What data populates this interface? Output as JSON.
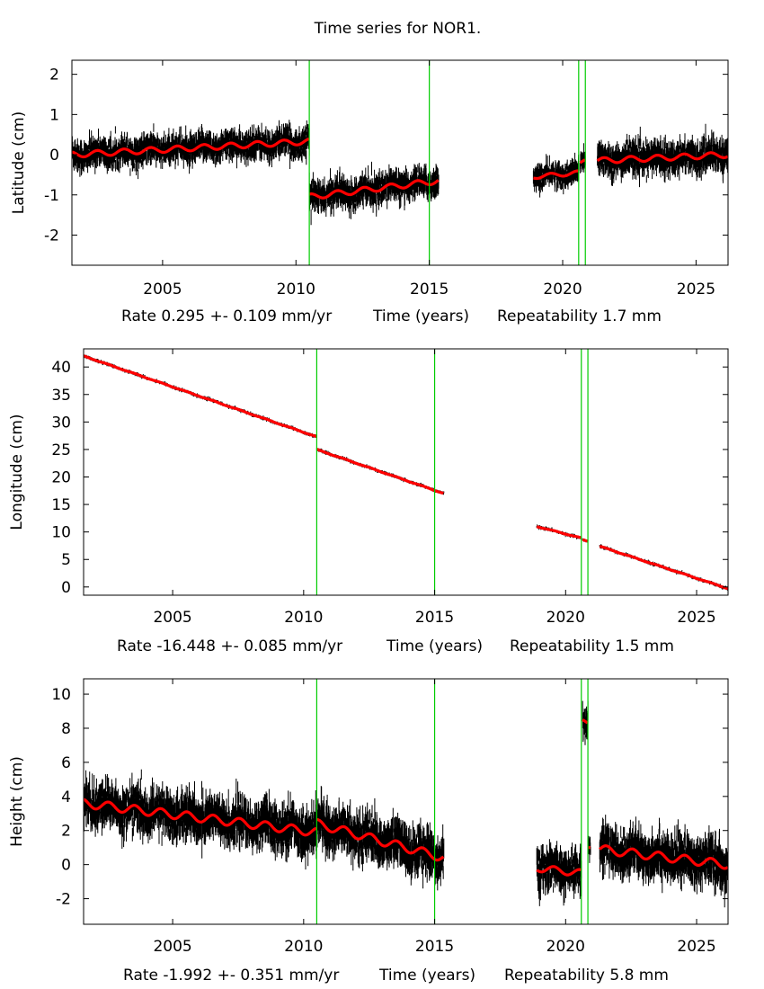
{
  "title": "Time series for NOR1.",
  "colors": {
    "data": "#000000",
    "model": "#ff0000",
    "event": "#00cc00"
  },
  "chart_data": [
    {
      "type": "scatter",
      "ylabel": "Latitude (cm)",
      "xlabel": "Time (years)",
      "rate_text": "Rate 0.295 +- 0.109 mm/yr",
      "repeat_text": "Repeatability 1.7 mm",
      "xlim": [
        2001.6,
        2026.2
      ],
      "ylim": [
        -2.75,
        2.35
      ],
      "xticks": [
        {
          "v": 2005,
          "label": "2005"
        },
        {
          "v": 2010,
          "label": "2010"
        },
        {
          "v": 2015,
          "label": "2015"
        },
        {
          "v": 2020,
          "label": "2020"
        },
        {
          "v": 2025,
          "label": "2025"
        }
      ],
      "yticks": [
        {
          "v": 2,
          "label": "2"
        },
        {
          "v": 1,
          "label": "1"
        },
        {
          "v": 0,
          "label": "0"
        },
        {
          "v": -1,
          "label": "-1"
        },
        {
          "v": -2,
          "label": "-2"
        }
      ],
      "event_lines": [
        2010.5,
        2015.0,
        2020.6,
        2020.85
      ],
      "segments": [
        {
          "x0": 2001.6,
          "x1": 2010.5,
          "y0": 0.0,
          "y1": 0.33,
          "scatter": 0.55,
          "seasonal": 0.07
        },
        {
          "x0": 2010.5,
          "x1": 2015.35,
          "y0": -1.05,
          "y1": -0.65,
          "scatter": 0.55,
          "seasonal": 0.07
        },
        {
          "x0": 2018.9,
          "x1": 2020.6,
          "y0": -0.55,
          "y1": -0.45,
          "scatter": 0.45,
          "seasonal": 0.05
        },
        {
          "x0": 2020.65,
          "x1": 2020.85,
          "y0": -0.2,
          "y1": -0.12,
          "scatter": 0.4,
          "seasonal": 0.0
        },
        {
          "x0": 2021.3,
          "x1": 2026.2,
          "y0": -0.15,
          "y1": 0.0,
          "scatter": 0.6,
          "seasonal": 0.07
        }
      ]
    },
    {
      "type": "scatter",
      "ylabel": "Longitude (cm)",
      "xlabel": "Time (years)",
      "rate_text": "Rate -16.448 +- 0.085 mm/yr",
      "repeat_text": "Repeatability 1.5 mm",
      "xlim": [
        2001.6,
        2026.2
      ],
      "ylim": [
        -1.5,
        43.3
      ],
      "xticks": [
        {
          "v": 2005,
          "label": "2005"
        },
        {
          "v": 2010,
          "label": "2010"
        },
        {
          "v": 2015,
          "label": "2015"
        },
        {
          "v": 2020,
          "label": "2020"
        },
        {
          "v": 2025,
          "label": "2025"
        }
      ],
      "yticks": [
        {
          "v": 40,
          "label": "40"
        },
        {
          "v": 35,
          "label": "35"
        },
        {
          "v": 30,
          "label": "30"
        },
        {
          "v": 25,
          "label": "25"
        },
        {
          "v": 20,
          "label": "20"
        },
        {
          "v": 15,
          "label": "15"
        },
        {
          "v": 10,
          "label": "10"
        },
        {
          "v": 5,
          "label": "5"
        },
        {
          "v": 0,
          "label": "0"
        }
      ],
      "event_lines": [
        2010.5,
        2015.0,
        2020.6,
        2020.85
      ],
      "segments": [
        {
          "x0": 2001.6,
          "x1": 2010.5,
          "y0": 42.0,
          "y1": 27.3,
          "scatter": 0.45,
          "seasonal": 0.05
        },
        {
          "x0": 2010.5,
          "x1": 2015.35,
          "y0": 25.0,
          "y1": 17.0,
          "scatter": 0.45,
          "seasonal": 0.05
        },
        {
          "x0": 2018.9,
          "x1": 2020.6,
          "y0": 11.0,
          "y1": 8.9,
          "scatter": 0.45,
          "seasonal": 0.05
        },
        {
          "x0": 2020.65,
          "x1": 2020.85,
          "y0": 8.6,
          "y1": 8.3,
          "scatter": 0.4,
          "seasonal": 0.0
        },
        {
          "x0": 2021.3,
          "x1": 2026.2,
          "y0": 7.4,
          "y1": -0.3,
          "scatter": 0.45,
          "seasonal": 0.05
        }
      ]
    },
    {
      "type": "scatter",
      "ylabel": "Height (cm)",
      "xlabel": "Time (years)",
      "rate_text": "Rate -1.992 +- 0.351 mm/yr",
      "repeat_text": "Repeatability 5.8 mm",
      "xlim": [
        2001.6,
        2026.2
      ],
      "ylim": [
        -3.5,
        10.9
      ],
      "xticks": [
        {
          "v": 2005,
          "label": "2005"
        },
        {
          "v": 2010,
          "label": "2010"
        },
        {
          "v": 2015,
          "label": "2015"
        },
        {
          "v": 2020,
          "label": "2020"
        },
        {
          "v": 2025,
          "label": "2025"
        }
      ],
      "yticks": [
        {
          "v": 10,
          "label": "10"
        },
        {
          "v": 8,
          "label": "8"
        },
        {
          "v": 6,
          "label": "6"
        },
        {
          "v": 4,
          "label": "4"
        },
        {
          "v": 2,
          "label": "2"
        },
        {
          "v": 0,
          "label": "0"
        },
        {
          "v": -2,
          "label": "-2"
        }
      ],
      "event_lines": [
        2010.5,
        2015.0,
        2020.6,
        2020.85
      ],
      "segments": [
        {
          "x0": 2001.6,
          "x1": 2010.5,
          "y0": 3.6,
          "y1": 1.9,
          "scatter": 2.0,
          "seasonal": 0.25
        },
        {
          "x0": 2010.5,
          "x1": 2015.35,
          "y0": 2.4,
          "y1": 0.4,
          "scatter": 2.0,
          "seasonal": 0.25
        },
        {
          "x0": 2018.9,
          "x1": 2020.6,
          "y0": -0.2,
          "y1": -0.5,
          "scatter": 1.8,
          "seasonal": 0.2
        },
        {
          "x0": 2020.65,
          "x1": 2020.85,
          "y0": 8.5,
          "y1": 8.3,
          "scatter": 1.5,
          "seasonal": 0.0
        },
        {
          "x0": 2020.87,
          "x1": 2020.95,
          "y0": 1.0,
          "y1": 1.0,
          "scatter": 1.0,
          "seasonal": 0.0
        },
        {
          "x0": 2021.3,
          "x1": 2026.2,
          "y0": 0.9,
          "y1": 0.0,
          "scatter": 2.0,
          "seasonal": 0.25
        }
      ]
    }
  ]
}
